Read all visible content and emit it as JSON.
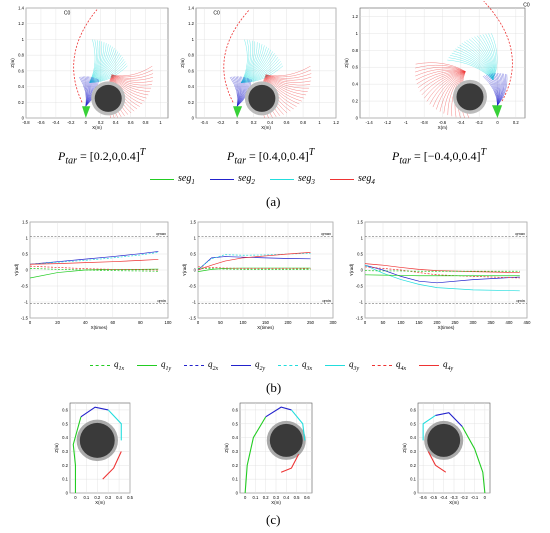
{
  "figure": {
    "row_a": {
      "panel_label": "(a)",
      "panels": [
        {
          "caption_var": "P",
          "caption_sub": "tar",
          "caption_value": "= [0.2,0,0.4]",
          "caption_sup": "T",
          "label_c0": "C0"
        },
        {
          "caption_var": "P",
          "caption_sub": "tar",
          "caption_value": "= [0.4,0,0.4]",
          "caption_sup": "T",
          "label_c0": "C0"
        },
        {
          "caption_var": "P",
          "caption_sub": "tar",
          "caption_value": "= [−0.4,0,0.4]",
          "caption_sup": "T",
          "label_c0": "C0"
        }
      ],
      "legend": [
        {
          "base": "seg",
          "sub": "1",
          "color": "#22cc22"
        },
        {
          "base": "seg",
          "sub": "2",
          "color": "#2222cc"
        },
        {
          "base": "seg",
          "sub": "3",
          "color": "#22dddd"
        },
        {
          "base": "seg",
          "sub": "4",
          "color": "#ee3333"
        }
      ]
    },
    "row_b": {
      "panel_label": "(b)",
      "legend": [
        {
          "base": "q",
          "sub": "1x",
          "color": "#22cc22",
          "dash": true
        },
        {
          "base": "q",
          "sub": "1y",
          "color": "#22cc22",
          "dash": false
        },
        {
          "base": "q",
          "sub": "2x",
          "color": "#2222cc",
          "dash": true
        },
        {
          "base": "q",
          "sub": "2y",
          "color": "#2222cc",
          "dash": false
        },
        {
          "base": "q",
          "sub": "3x",
          "color": "#22dddd",
          "dash": true
        },
        {
          "base": "q",
          "sub": "3y",
          "color": "#22dddd",
          "dash": false
        },
        {
          "base": "q",
          "sub": "4x",
          "color": "#ee3333",
          "dash": true
        },
        {
          "base": "q",
          "sub": "4y",
          "color": "#ee3333",
          "dash": false
        }
      ]
    },
    "row_c": {
      "panel_label": "(c)"
    }
  },
  "chart_data": [
    {
      "type": "line",
      "panel": "a1",
      "xlabel": "X(m)",
      "ylabel": "Z(m)",
      "xticks": [
        "-0.8",
        "-0.6",
        "-0.4",
        "-0.2",
        "0",
        "0.2",
        "0.4",
        "0.6",
        "0.8",
        "1"
      ],
      "yticks": [
        "0",
        "0.2",
        "0.4",
        "0.6",
        "0.8",
        "1",
        "1.2",
        "1.4"
      ],
      "xlim": [
        -0.8,
        1.1
      ],
      "ylim": [
        0,
        1.4
      ]
    },
    {
      "type": "line",
      "panel": "a2",
      "xlabel": "X(m)",
      "ylabel": "Z(m)",
      "xticks": [
        "-0.4",
        "-0.2",
        "0",
        "0.2",
        "0.4",
        "0.6",
        "0.8",
        "1",
        "1.2"
      ],
      "yticks": [
        "0",
        "0.2",
        "0.4",
        "0.6",
        "0.8",
        "1",
        "1.2",
        "1.4"
      ],
      "xlim": [
        -0.5,
        1.2
      ],
      "ylim": [
        0,
        1.4
      ]
    },
    {
      "type": "line",
      "panel": "a3",
      "xlabel": "X(m)",
      "ylabel": "Z(m)",
      "xticks": [
        "-1.4",
        "-1.2",
        "-1",
        "-0.8",
        "-0.6",
        "-0.4",
        "-0.2",
        "0",
        "0.2"
      ],
      "yticks": [
        "0",
        "0.2",
        "0.4",
        "0.6",
        "0.8",
        "1",
        "1.2"
      ],
      "xlim": [
        -1.5,
        0.3
      ],
      "ylim": [
        0,
        1.3
      ]
    },
    {
      "type": "line",
      "panel": "b1",
      "xlabel": "X(times)",
      "ylabel": "Y(rad)",
      "xticks": [
        "0",
        "20",
        "40",
        "60",
        "80",
        "100"
      ],
      "yticks": [
        "-1.5",
        "-1",
        "-0.5",
        "0",
        "0.5",
        "1",
        "1.5"
      ],
      "xlim": [
        0,
        100
      ],
      "ylim": [
        -1.5,
        1.5
      ],
      "limit_labels": {
        "max": "qmax",
        "min": "qmin"
      },
      "limits": [
        1.05,
        -1.05
      ],
      "x": [
        0,
        20,
        40,
        60,
        80,
        93
      ],
      "series": [
        {
          "values": [
            0.18,
            0.26,
            0.34,
            0.42,
            0.51,
            0.58
          ],
          "color": "#2222cc",
          "dash": false
        },
        {
          "values": [
            0.18,
            0.24,
            0.3,
            0.38,
            0.47,
            0.55
          ],
          "color": "#22dddd",
          "dash": true
        },
        {
          "values": [
            0.18,
            0.2,
            0.23,
            0.26,
            0.3,
            0.33
          ],
          "color": "#ee3333",
          "dash": false
        },
        {
          "values": [
            -0.25,
            -0.08,
            0.0,
            0.02,
            0.02,
            0.03
          ],
          "color": "#22cc22",
          "dash": false
        },
        {
          "values": [
            0.05,
            0.02,
            0.0,
            -0.02,
            -0.03,
            -0.04
          ],
          "color": "#22cc22",
          "dash": true
        },
        {
          "values": [
            0.12,
            0.08,
            0.04,
            0.02,
            0.01,
            0.0
          ],
          "color": "#ee3333",
          "dash": true
        }
      ]
    },
    {
      "type": "line",
      "panel": "b2",
      "xlabel": "X(times)",
      "ylabel": "Y(rad)",
      "xticks": [
        "0",
        "50",
        "100",
        "150",
        "200",
        "250",
        "300"
      ],
      "yticks": [
        "-1.5",
        "-1",
        "-0.5",
        "0",
        "0.5",
        "1",
        "1.5"
      ],
      "xlim": [
        0,
        300
      ],
      "ylim": [
        -1.5,
        1.5
      ],
      "limit_labels": {
        "max": "qmax",
        "min": "qmin"
      },
      "limits": [
        1.05,
        -1.05
      ],
      "x": [
        0,
        30,
        60,
        100,
        150,
        200,
        250
      ],
      "series": [
        {
          "values": [
            0.0,
            0.38,
            0.42,
            0.4,
            0.38,
            0.36,
            0.35
          ],
          "color": "#2222cc",
          "dash": false
        },
        {
          "values": [
            0.02,
            0.35,
            0.48,
            0.46,
            0.47,
            0.5,
            0.52
          ],
          "color": "#22dddd",
          "dash": true
        },
        {
          "values": [
            0.0,
            0.15,
            0.28,
            0.38,
            0.44,
            0.5,
            0.55
          ],
          "color": "#ee3333",
          "dash": false
        },
        {
          "values": [
            0.05,
            0.04,
            0.03,
            0.02,
            0.02,
            0.02,
            0.02
          ],
          "color": "#22cc22",
          "dash": true
        },
        {
          "values": [
            -0.05,
            0.02,
            0.05,
            0.06,
            0.06,
            0.06,
            0.06
          ],
          "color": "#22cc22",
          "dash": false
        },
        {
          "values": [
            0.1,
            0.08,
            0.06,
            0.05,
            0.05,
            0.05,
            0.04
          ],
          "color": "#ee3333",
          "dash": true
        }
      ]
    },
    {
      "type": "line",
      "panel": "b3",
      "xlabel": "X(times)",
      "ylabel": "Y(rad)",
      "xticks": [
        "0",
        "50",
        "100",
        "150",
        "200",
        "250",
        "300",
        "350",
        "400",
        "450"
      ],
      "yticks": [
        "-1.5",
        "-1",
        "-0.5",
        "0",
        "0.5",
        "1",
        "1.5"
      ],
      "xlim": [
        0,
        450
      ],
      "ylim": [
        -1.5,
        1.5
      ],
      "limit_labels": {
        "max": "qmax",
        "min": "qmin"
      },
      "limits": [
        1.05,
        -1.05
      ],
      "x": [
        0,
        50,
        100,
        150,
        200,
        300,
        430
      ],
      "series": [
        {
          "values": [
            0.15,
            0.0,
            -0.2,
            -0.35,
            -0.4,
            -0.3,
            -0.22
          ],
          "color": "#2222cc",
          "dash": false
        },
        {
          "values": [
            0.15,
            -0.1,
            -0.3,
            -0.45,
            -0.55,
            -0.62,
            -0.65
          ],
          "color": "#22dddd",
          "dash": false
        },
        {
          "values": [
            0.2,
            0.15,
            0.08,
            0.02,
            -0.02,
            -0.05,
            -0.08
          ],
          "color": "#ee3333",
          "dash": false
        },
        {
          "values": [
            0.1,
            0.05,
            0.0,
            -0.08,
            -0.15,
            -0.2,
            -0.25
          ],
          "color": "#ee3333",
          "dash": true
        },
        {
          "values": [
            -0.15,
            -0.16,
            -0.17,
            -0.18,
            -0.18,
            -0.18,
            -0.18
          ],
          "color": "#22cc22",
          "dash": false
        },
        {
          "values": [
            -0.02,
            -0.03,
            -0.03,
            -0.04,
            -0.04,
            -0.04,
            -0.04
          ],
          "color": "#22cc22",
          "dash": true
        }
      ]
    },
    {
      "type": "line",
      "panel": "c1",
      "xlabel": "X(m)",
      "ylabel": "Z(m)",
      "xticks": [
        "0",
        "0.1",
        "0.2",
        "0.3",
        "0.4",
        "0.5"
      ],
      "yticks": [
        "0",
        "0.1",
        "0.2",
        "0.3",
        "0.4",
        "0.5",
        "0.6"
      ],
      "xlim": [
        -0.05,
        0.5
      ],
      "ylim": [
        0,
        0.65
      ]
    },
    {
      "type": "line",
      "panel": "c2",
      "xlabel": "X(m)",
      "ylabel": "Z(m)",
      "xticks": [
        "0",
        "0.1",
        "0.2",
        "0.3",
        "0.4",
        "0.5",
        "0.6"
      ],
      "yticks": [
        "0",
        "0.1",
        "0.2",
        "0.3",
        "0.4",
        "0.5",
        "0.6"
      ],
      "xlim": [
        -0.05,
        0.65
      ],
      "ylim": [
        0,
        0.65
      ]
    },
    {
      "type": "line",
      "panel": "c3",
      "xlabel": "X(m)",
      "ylabel": "Z(m)",
      "xticks": [
        "-0.6",
        "-0.5",
        "-0.4",
        "-0.3",
        "-0.2",
        "-0.1",
        "0"
      ],
      "yticks": [
        "0",
        "0.1",
        "0.2",
        "0.3",
        "0.4",
        "0.5",
        "0.6"
      ],
      "xlim": [
        -0.65,
        0.05
      ],
      "ylim": [
        0,
        0.65
      ]
    }
  ]
}
